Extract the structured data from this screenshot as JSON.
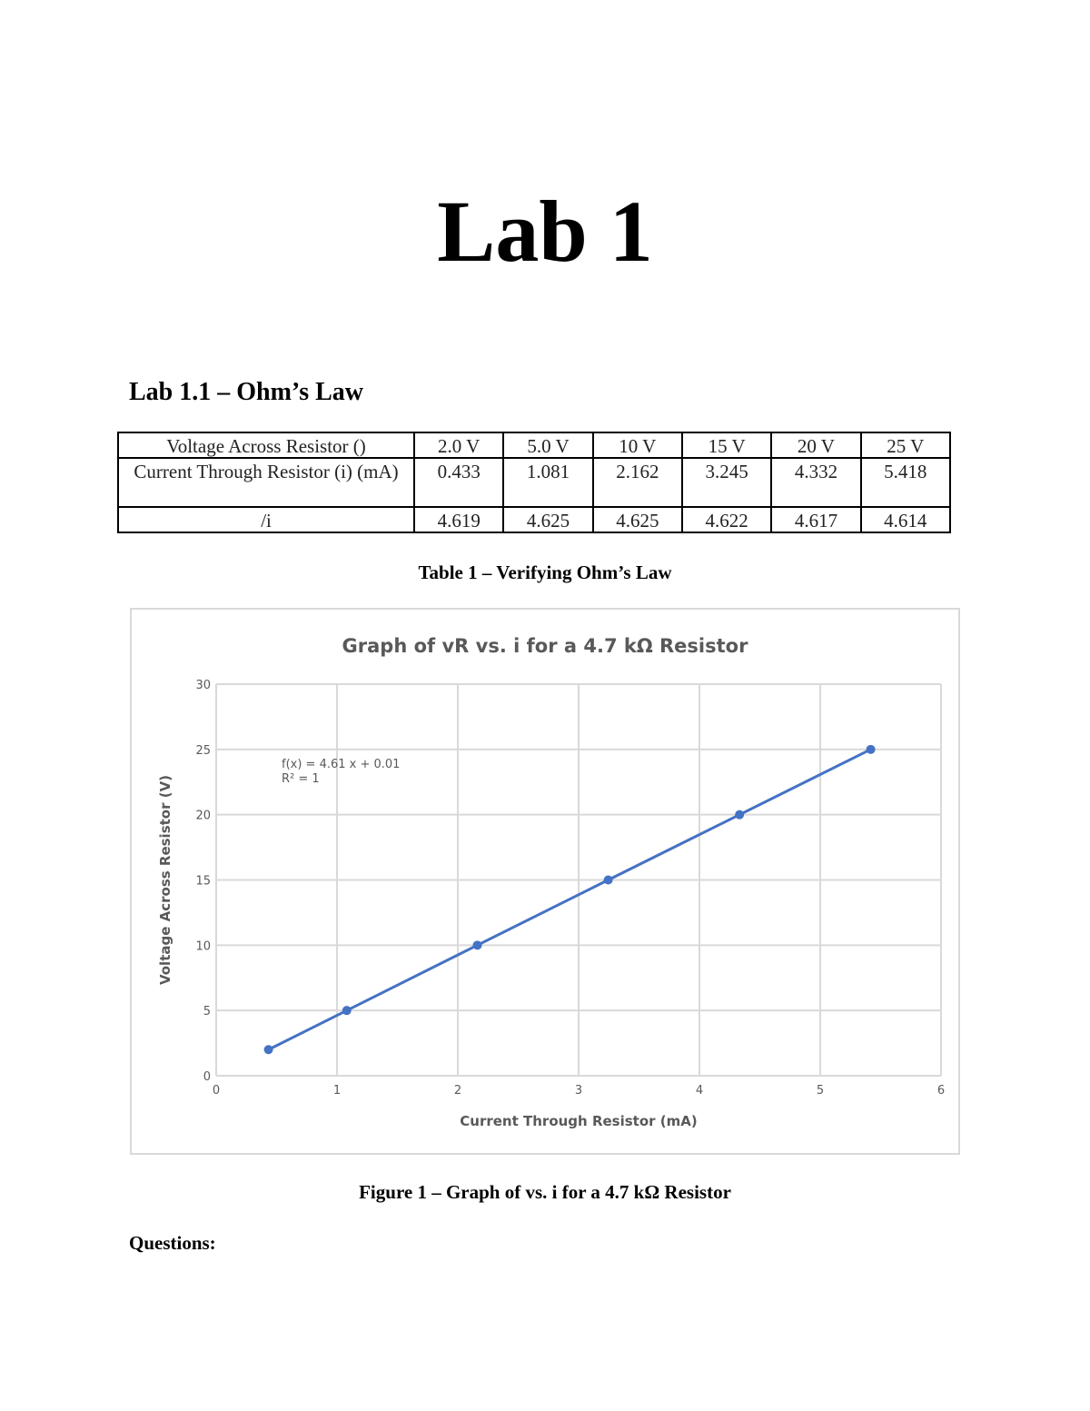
{
  "document": {
    "title": "Lab 1",
    "section_heading": "Lab 1.1 – Ohm’s Law",
    "table": {
      "rows": [
        {
          "label": "Voltage Across Resistor ()",
          "values": [
            "2.0 V",
            "5.0 V",
            "10 V",
            "15 V",
            "20 V",
            "25 V"
          ]
        },
        {
          "label": "Current Through Resistor (i) (mA)",
          "values": [
            "0.433",
            "1.081",
            "2.162",
            "3.245",
            "4.332",
            "5.418"
          ]
        },
        {
          "label": "/i",
          "values": [
            "4.619",
            "4.625",
            "4.625",
            "4.622",
            "4.617",
            "4.614"
          ]
        }
      ]
    },
    "table_caption": "Table 1 – Verifying Ohm’s Law",
    "figure_caption": "Figure 1 – Graph of  vs. i for a 4.7 kΩ Resistor",
    "questions_heading": "Questions:"
  },
  "chart_data": {
    "type": "scatter",
    "title": "Graph of vR vs. i for a 4.7 kΩ Resistor",
    "xlabel": "Current Through Resistor (mA)",
    "ylabel": "Voltage Across Resistor (V)",
    "xlim": [
      0,
      6
    ],
    "ylim": [
      0,
      30
    ],
    "x_ticks": [
      "0",
      "1",
      "2",
      "3",
      "4",
      "5",
      "6"
    ],
    "y_ticks": [
      "0",
      "5",
      "10",
      "15",
      "20",
      "25",
      "30"
    ],
    "grid": true,
    "legend": "none",
    "series": [
      {
        "x": [
          0.433,
          1.081,
          2.162,
          3.245,
          4.332,
          5.418
        ],
        "y": [
          2,
          5,
          10,
          15,
          20,
          25
        ],
        "color": "#4472c4"
      }
    ],
    "trendline": {
      "slope": 4.61,
      "intercept": 0.01,
      "color": "#4472c4"
    },
    "annotations": [
      "f(x) = 4.61 x + 0.01",
      "R² = 1"
    ]
  }
}
